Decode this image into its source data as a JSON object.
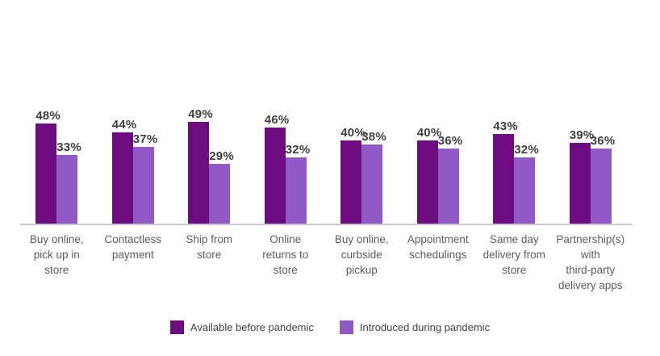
{
  "chart_data": {
    "type": "bar",
    "categories": [
      "Buy online,\npick up in\nstore",
      "Contactless\npayment",
      "Ship from\nstore",
      "Online\nreturns to\nstore",
      "Buy online,\ncurbside\npickup",
      "Appointment\nschedulings",
      "Same day\ndelivery from\nstore",
      "Partnership(s)\nwith\nthird-party\ndelivery apps"
    ],
    "series": [
      {
        "name": "Available before pandemic",
        "color": "#6d0b80",
        "values": [
          48,
          44,
          49,
          46,
          40,
          40,
          43,
          39
        ]
      },
      {
        "name": "Introduced during pandemic",
        "color": "#9059c6",
        "values": [
          33,
          37,
          29,
          32,
          38,
          36,
          32,
          36
        ]
      }
    ],
    "value_suffix": "%",
    "title": "",
    "xlabel": "",
    "ylabel": "",
    "ylim": [
      0,
      50
    ],
    "grid": false,
    "legend_position": "bottom"
  },
  "legend": {
    "before_label": "Available before pandemic",
    "during_label": "Introduced during pandemic"
  },
  "colors": {
    "bar_before": "#6d0b80",
    "bar_during": "#9059c6",
    "value_label": "#3f3f3f",
    "category_label": "#5c5c5c",
    "axis_line": "#cbcbcb",
    "background": "#ffffff"
  }
}
